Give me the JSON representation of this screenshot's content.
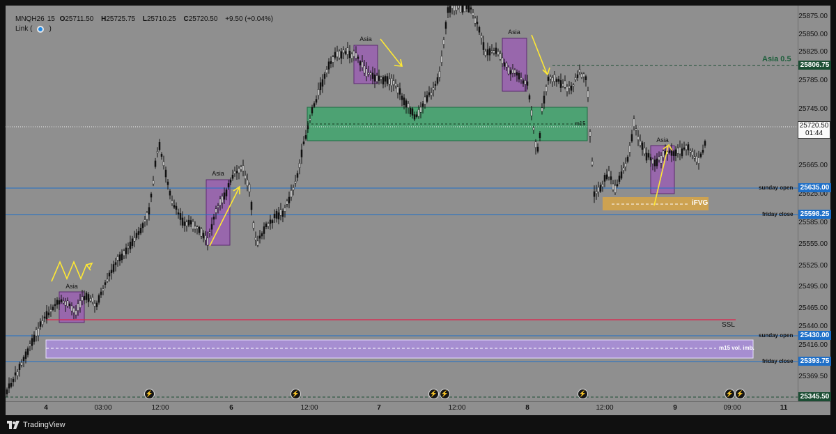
{
  "header": {
    "symbol": "MNQH26",
    "interval": "15",
    "open_label": "O",
    "open": "25711.50",
    "high_label": "H",
    "high": "25725.75",
    "low_label": "L",
    "low": "25710.25",
    "close_label": "C",
    "close": "25720.50",
    "change": "+9.50 (+0.04%)",
    "link_label": "Link ("
  },
  "price_axis": {
    "ticks": [
      "25875.00",
      "25850.00",
      "25825.00",
      "25785.00",
      "25745.00",
      "25665.00",
      "25625.00",
      "25585.00",
      "25555.00",
      "25525.00",
      "25495.00",
      "25465.00",
      "25440.00",
      "25416.00",
      "25369.50"
    ],
    "current_price": "25720.50",
    "countdown": "01:44"
  },
  "time_axis": {
    "ticks": [
      "4",
      "03:00",
      "12:00",
      "6",
      "12:00",
      "7",
      "12:00",
      "8",
      "12:00",
      "9",
      "09:00",
      "11"
    ]
  },
  "levels": [
    {
      "name": "Asia 0.5",
      "price": "25806.75",
      "color": "#1b4d33"
    },
    {
      "name": "sunday open",
      "price": "25635.00",
      "color": "#1e6fc8"
    },
    {
      "name": "friday close",
      "price": "25598.25",
      "color": "#1e6fc8"
    },
    {
      "name": "sunday open",
      "price": "25430.00",
      "color": "#1e6fc8"
    },
    {
      "name": "friday close",
      "price": "25393.75",
      "color": "#1e6fc8"
    },
    {
      "name": "",
      "price": "25345.50",
      "color": "#1b4d33"
    }
  ],
  "annotations": {
    "asia_boxes": [
      "Asia",
      "Asia",
      "Asia",
      "Asia",
      "Asia"
    ],
    "m15_label": "m15",
    "ifvg_label": "iFVG",
    "ssl_label": "SSL",
    "vol_imb_label": "m15 vol. imb."
  },
  "icons": {
    "event": "lightning-bolt-icon",
    "logo": "tradingview-logo-icon"
  },
  "footer": {
    "brand": "TradingView"
  },
  "colors": {
    "background": "#8f8f8f",
    "asia_box": "#9b59b6",
    "green_zone": "#2e9e5b",
    "ifvg_zone": "#d9a441",
    "vol_imb_zone": "#a78bd6",
    "ssl_line": "#e0204a",
    "arrows": "#ffe933",
    "candles": "#111111"
  }
}
